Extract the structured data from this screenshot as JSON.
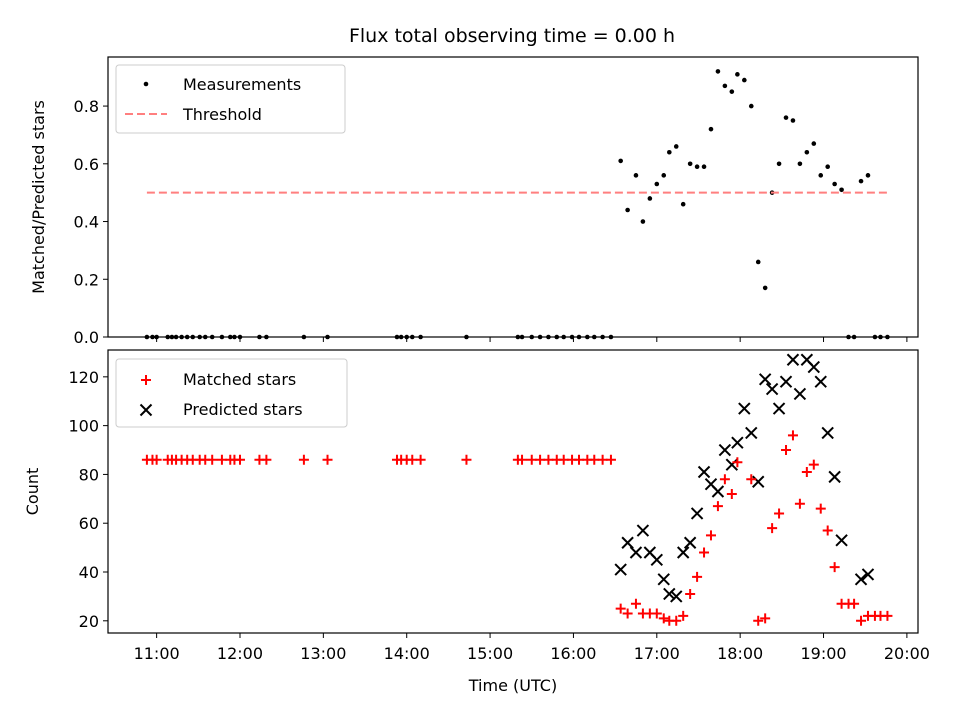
{
  "chart_data": [
    {
      "type": "scatter",
      "title": "Flux total observing time = 0.00 h",
      "xlabel": "",
      "ylabel": "Matched/Predicted stars",
      "xlim": [
        "10:25",
        "20:08"
      ],
      "ylim": [
        0,
        0.97
      ],
      "yticks": [
        0.0,
        0.2,
        0.4,
        0.6,
        0.8
      ],
      "ytick_labels": [
        "0.0",
        "0.2",
        "0.4",
        "0.6",
        "0.8"
      ],
      "grid": false,
      "legend_position": "top-left",
      "series": [
        {
          "name": "Measurements",
          "kind": "scatter",
          "marker": "dot",
          "color": "#000000",
          "points": [
            [
              "10:53",
              0
            ],
            [
              "10:57",
              0
            ],
            [
              "11:00",
              0
            ],
            [
              "11:08",
              0
            ],
            [
              "11:11",
              0
            ],
            [
              "11:14",
              0
            ],
            [
              "11:18",
              0
            ],
            [
              "11:22",
              0
            ],
            [
              "11:26",
              0
            ],
            [
              "11:31",
              0
            ],
            [
              "11:35",
              0
            ],
            [
              "11:40",
              0
            ],
            [
              "11:47",
              0
            ],
            [
              "11:53",
              0
            ],
            [
              "11:56",
              0
            ],
            [
              "12:00",
              0
            ],
            [
              "12:14",
              0
            ],
            [
              "12:19",
              0
            ],
            [
              "12:46",
              0
            ],
            [
              "13:03",
              0
            ],
            [
              "13:53",
              0
            ],
            [
              "13:56",
              0
            ],
            [
              "14:00",
              0
            ],
            [
              "14:04",
              0
            ],
            [
              "14:10",
              0
            ],
            [
              "14:43",
              0
            ],
            [
              "15:20",
              0
            ],
            [
              "15:23",
              0
            ],
            [
              "15:30",
              0
            ],
            [
              "15:36",
              0
            ],
            [
              "15:42",
              0
            ],
            [
              "15:48",
              0
            ],
            [
              "15:53",
              0
            ],
            [
              "15:59",
              0
            ],
            [
              "16:04",
              0
            ],
            [
              "16:10",
              0
            ],
            [
              "16:15",
              0
            ],
            [
              "16:21",
              0
            ],
            [
              "16:27",
              0
            ],
            [
              "16:34",
              0.61
            ],
            [
              "16:39",
              0.44
            ],
            [
              "16:45",
              0.56
            ],
            [
              "16:50",
              0.4
            ],
            [
              "16:55",
              0.48
            ],
            [
              "17:00",
              0.53
            ],
            [
              "17:05",
              0.56
            ],
            [
              "17:09",
              0.64
            ],
            [
              "17:14",
              0.66
            ],
            [
              "17:19",
              0.46
            ],
            [
              "17:24",
              0.6
            ],
            [
              "17:29",
              0.59
            ],
            [
              "17:34",
              0.59
            ],
            [
              "17:39",
              0.72
            ],
            [
              "17:44",
              0.92
            ],
            [
              "17:49",
              0.87
            ],
            [
              "17:54",
              0.85
            ],
            [
              "17:58",
              0.91
            ],
            [
              "18:03",
              0.89
            ],
            [
              "18:08",
              0.8
            ],
            [
              "18:13",
              0.26
            ],
            [
              "18:18",
              0.17
            ],
            [
              "18:23",
              0.5
            ],
            [
              "18:28",
              0.6
            ],
            [
              "18:33",
              0.76
            ],
            [
              "18:38",
              0.75
            ],
            [
              "18:43",
              0.6
            ],
            [
              "18:48",
              0.64
            ],
            [
              "18:53",
              0.67
            ],
            [
              "18:58",
              0.56
            ],
            [
              "19:03",
              0.59
            ],
            [
              "19:08",
              0.53
            ],
            [
              "19:13",
              0.51
            ],
            [
              "19:18",
              0
            ],
            [
              "19:22",
              0
            ],
            [
              "19:27",
              0.54
            ],
            [
              "19:32",
              0.56
            ],
            [
              "19:37",
              0
            ],
            [
              "19:41",
              0
            ],
            [
              "19:46",
              0
            ]
          ]
        },
        {
          "name": "Threshold",
          "kind": "line",
          "style": "dashed",
          "color": "#ff7f7f",
          "points": [
            [
              "10:53",
              0.5
            ],
            [
              "19:46",
              0.5
            ]
          ]
        }
      ]
    },
    {
      "type": "scatter",
      "title": "",
      "xlabel": "Time (UTC)",
      "ylabel": "Count",
      "xlim": [
        "10:25",
        "20:08"
      ],
      "ylim": [
        15,
        131
      ],
      "yticks": [
        20,
        40,
        60,
        80,
        100,
        120
      ],
      "ytick_labels": [
        "20",
        "40",
        "60",
        "80",
        "100",
        "120"
      ],
      "xticks": [
        "11:00",
        "12:00",
        "13:00",
        "14:00",
        "15:00",
        "16:00",
        "17:00",
        "18:00",
        "19:00",
        "20:00"
      ],
      "xtick_labels": [
        "11:00",
        "12:00",
        "13:00",
        "14:00",
        "15:00",
        "16:00",
        "17:00",
        "18:00",
        "19:00",
        "20:00"
      ],
      "grid": false,
      "legend_position": "top-left",
      "series": [
        {
          "name": "Matched stars",
          "kind": "scatter",
          "marker": "plus",
          "color": "#ff0000",
          "points": [
            [
              "10:53",
              86
            ],
            [
              "10:57",
              86
            ],
            [
              "11:00",
              86
            ],
            [
              "11:08",
              86
            ],
            [
              "11:11",
              86
            ],
            [
              "11:14",
              86
            ],
            [
              "11:18",
              86
            ],
            [
              "11:22",
              86
            ],
            [
              "11:26",
              86
            ],
            [
              "11:31",
              86
            ],
            [
              "11:35",
              86
            ],
            [
              "11:40",
              86
            ],
            [
              "11:47",
              86
            ],
            [
              "11:53",
              86
            ],
            [
              "11:56",
              86
            ],
            [
              "12:00",
              86
            ],
            [
              "12:14",
              86
            ],
            [
              "12:19",
              86
            ],
            [
              "12:46",
              86
            ],
            [
              "13:03",
              86
            ],
            [
              "13:53",
              86
            ],
            [
              "13:56",
              86
            ],
            [
              "14:00",
              86
            ],
            [
              "14:04",
              86
            ],
            [
              "14:10",
              86
            ],
            [
              "14:43",
              86
            ],
            [
              "15:20",
              86
            ],
            [
              "15:23",
              86
            ],
            [
              "15:30",
              86
            ],
            [
              "15:36",
              86
            ],
            [
              "15:42",
              86
            ],
            [
              "15:48",
              86
            ],
            [
              "15:53",
              86
            ],
            [
              "15:59",
              86
            ],
            [
              "16:04",
              86
            ],
            [
              "16:10",
              86
            ],
            [
              "16:15",
              86
            ],
            [
              "16:21",
              86
            ],
            [
              "16:27",
              86
            ],
            [
              "16:34",
              25
            ],
            [
              "16:39",
              23
            ],
            [
              "16:45",
              27
            ],
            [
              "16:50",
              23
            ],
            [
              "16:55",
              23
            ],
            [
              "17:00",
              23
            ],
            [
              "17:05",
              21
            ],
            [
              "17:09",
              20
            ],
            [
              "17:14",
              20
            ],
            [
              "17:19",
              22
            ],
            [
              "17:24",
              31
            ],
            [
              "17:29",
              38
            ],
            [
              "17:34",
              48
            ],
            [
              "17:39",
              55
            ],
            [
              "17:44",
              67
            ],
            [
              "17:49",
              78
            ],
            [
              "17:54",
              72
            ],
            [
              "17:58",
              85
            ],
            [
              "18:03",
              null
            ],
            [
              "18:08",
              78
            ],
            [
              "18:13",
              20
            ],
            [
              "18:18",
              21
            ],
            [
              "18:23",
              58
            ],
            [
              "18:28",
              64
            ],
            [
              "18:33",
              90
            ],
            [
              "18:38",
              96
            ],
            [
              "18:43",
              68
            ],
            [
              "18:48",
              81
            ],
            [
              "18:53",
              84
            ],
            [
              "18:58",
              66
            ],
            [
              "19:03",
              57
            ],
            [
              "19:08",
              42
            ],
            [
              "19:13",
              27
            ],
            [
              "19:18",
              27
            ],
            [
              "19:22",
              27
            ],
            [
              "19:27",
              20
            ],
            [
              "19:32",
              22
            ],
            [
              "19:37",
              22
            ],
            [
              "19:41",
              22
            ],
            [
              "19:46",
              22
            ]
          ]
        },
        {
          "name": "Predicted stars",
          "kind": "scatter",
          "marker": "x",
          "color": "#000000",
          "points": [
            [
              "16:34",
              41
            ],
            [
              "16:39",
              52
            ],
            [
              "16:45",
              48
            ],
            [
              "16:50",
              57
            ],
            [
              "16:55",
              48
            ],
            [
              "17:00",
              45
            ],
            [
              "17:05",
              37
            ],
            [
              "17:09",
              31
            ],
            [
              "17:14",
              30
            ],
            [
              "17:19",
              48
            ],
            [
              "17:24",
              52
            ],
            [
              "17:29",
              64
            ],
            [
              "17:34",
              81
            ],
            [
              "17:39",
              76
            ],
            [
              "17:44",
              73
            ],
            [
              "17:49",
              90
            ],
            [
              "17:54",
              84
            ],
            [
              "17:58",
              93
            ],
            [
              "18:03",
              107
            ],
            [
              "18:08",
              97
            ],
            [
              "18:13",
              77
            ],
            [
              "18:18",
              119
            ],
            [
              "18:23",
              115
            ],
            [
              "18:28",
              107
            ],
            [
              "18:33",
              118
            ],
            [
              "18:38",
              127
            ],
            [
              "18:43",
              113
            ],
            [
              "18:48",
              127
            ],
            [
              "18:53",
              124
            ],
            [
              "18:58",
              118
            ],
            [
              "19:03",
              97
            ],
            [
              "19:08",
              79
            ],
            [
              "19:13",
              53
            ],
            [
              "19:27",
              37
            ],
            [
              "19:32",
              39
            ]
          ]
        }
      ]
    }
  ]
}
